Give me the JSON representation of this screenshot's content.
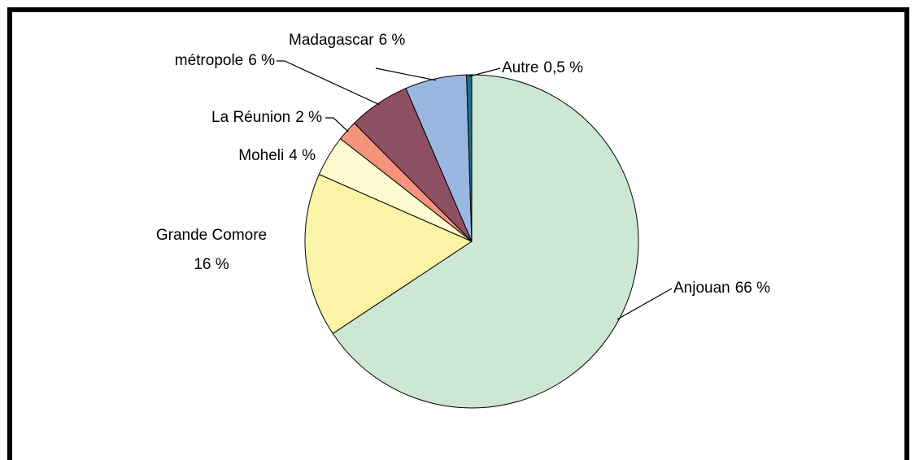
{
  "chart_data": {
    "type": "pie",
    "categories": [
      "Anjouan",
      "Grande Comore",
      "Moheli",
      "La Réunion",
      "métropole",
      "Madagascar",
      "Autre"
    ],
    "values": [
      66,
      16,
      4,
      2,
      6,
      6,
      0.5
    ],
    "value_labels": [
      "66 %",
      "16 %",
      "4 %",
      "2 %",
      "6 %",
      "6 %",
      "0,5 %"
    ],
    "colors": [
      "#cde7d5",
      "#fbf3a6",
      "#fdfbcf",
      "#f5937b",
      "#8e4f63",
      "#9ab7e1",
      "#1f6e8c"
    ]
  }
}
